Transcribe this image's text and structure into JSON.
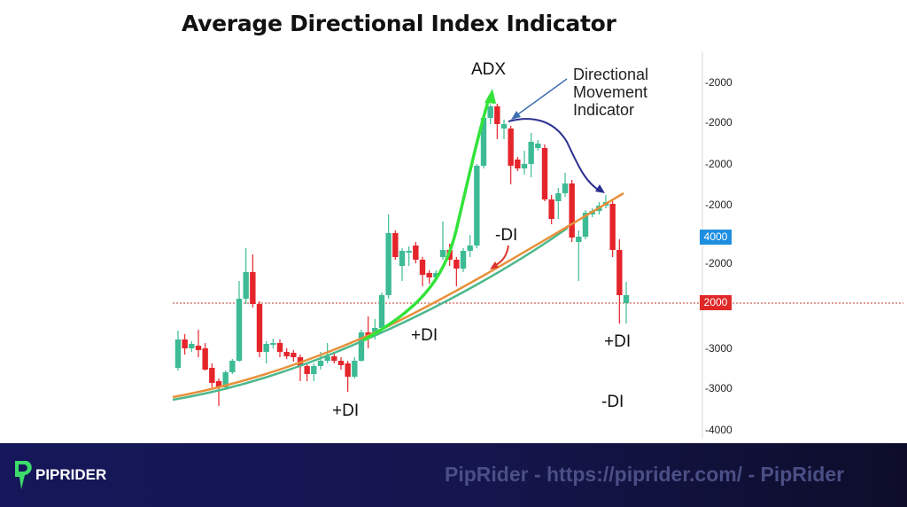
{
  "title": "Average Directional Index Indicator",
  "footer": {
    "logo_text": "PIPRIDER",
    "watermark": "PipRider - https://piprider.com/ - PipRider"
  },
  "chart_data": {
    "type": "candlestick",
    "title": "Average Directional Index Indicator",
    "y_tick_labels": [
      "-2000",
      "-2000",
      "-2000",
      "-2000",
      "-2000",
      "-3000",
      "-3000",
      "-4000"
    ],
    "price_badges": [
      {
        "label": "4000",
        "color": "#1e8fe0"
      },
      {
        "label": "2000",
        "color": "#e02828"
      }
    ],
    "horizontal_reference": {
      "style": "dotted",
      "color": "#c0392b",
      "badge": "2000"
    },
    "colors": {
      "up": "#3dbb94",
      "down": "#e4252b",
      "adx": "#33e33a",
      "plus_di": "#4cb88c",
      "minus_di": "#e8903a",
      "dmi_arrow": "#2b2f8f"
    },
    "annotations": [
      {
        "text": "ADX"
      },
      {
        "text": "Directional Movement Indicator"
      },
      {
        "text": "-DI"
      },
      {
        "text": "+DI"
      },
      {
        "text": "+DI"
      },
      {
        "text": "+DI"
      },
      {
        "text": "-DI"
      }
    ],
    "ohlc_columns": [
      "open",
      "high",
      "low",
      "close"
    ],
    "candles": [
      [
        85,
        127,
        82,
        117
      ],
      [
        117,
        123,
        100,
        107
      ],
      [
        107,
        115,
        103,
        112
      ],
      [
        110,
        128,
        97,
        105
      ],
      [
        107,
        113,
        82,
        83
      ],
      [
        85,
        90,
        63,
        68
      ],
      [
        70,
        73,
        42,
        63
      ],
      [
        63,
        82,
        60,
        80
      ],
      [
        80,
        95,
        78,
        93
      ],
      [
        93,
        183,
        92,
        163
      ],
      [
        163,
        220,
        157,
        193
      ],
      [
        193,
        213,
        153,
        157
      ],
      [
        157,
        160,
        97,
        103
      ],
      [
        103,
        115,
        90,
        112
      ],
      [
        112,
        118,
        107,
        113
      ],
      [
        113,
        117,
        97,
        103
      ],
      [
        103,
        107,
        95,
        98
      ],
      [
        102,
        105,
        92,
        97
      ],
      [
        97,
        100,
        70,
        87
      ],
      [
        87,
        90,
        70,
        78
      ],
      [
        78,
        90,
        70,
        87
      ],
      [
        87,
        103,
        83,
        93
      ],
      [
        93,
        113,
        90,
        98
      ],
      [
        98,
        103,
        90,
        93
      ],
      [
        93,
        97,
        83,
        88
      ],
      [
        90,
        93,
        58,
        75
      ],
      [
        75,
        97,
        73,
        93
      ],
      [
        93,
        128,
        92,
        125
      ],
      [
        125,
        143,
        107,
        120
      ],
      [
        123,
        140,
        117,
        130
      ],
      [
        130,
        170,
        127,
        167
      ],
      [
        167,
        258,
        163,
        237
      ],
      [
        237,
        240,
        207,
        210
      ],
      [
        200,
        220,
        183,
        217
      ],
      [
        215,
        222,
        200,
        217
      ],
      [
        223,
        227,
        203,
        207
      ],
      [
        207,
        210,
        177,
        190
      ],
      [
        192,
        195,
        180,
        187
      ],
      [
        187,
        195,
        185,
        192
      ],
      [
        210,
        250,
        207,
        218
      ],
      [
        218,
        225,
        200,
        207
      ],
      [
        207,
        210,
        177,
        197
      ],
      [
        197,
        220,
        193,
        217
      ],
      [
        217,
        235,
        210,
        223
      ],
      [
        223,
        315,
        220,
        313
      ],
      [
        313,
        368,
        310,
        367
      ],
      [
        367,
        382,
        360,
        380
      ],
      [
        380,
        383,
        343,
        360
      ],
      [
        355,
        365,
        343,
        360
      ],
      [
        355,
        358,
        292,
        313
      ],
      [
        320,
        323,
        307,
        310
      ],
      [
        310,
        330,
        303,
        315
      ],
      [
        315,
        350,
        300,
        340
      ],
      [
        333,
        342,
        330,
        338
      ],
      [
        333,
        337,
        273,
        275
      ],
      [
        275,
        280,
        247,
        253
      ],
      [
        273,
        288,
        253,
        282
      ],
      [
        282,
        305,
        278,
        293
      ],
      [
        293,
        297,
        227,
        232
      ],
      [
        227,
        240,
        183,
        233
      ],
      [
        233,
        263,
        230,
        260
      ],
      [
        258,
        265,
        255,
        262
      ],
      [
        262,
        272,
        258,
        268
      ],
      [
        268,
        280,
        265,
        272
      ],
      [
        270,
        273,
        210,
        218
      ],
      [
        218,
        230,
        135,
        167
      ],
      [
        158,
        182,
        135,
        167
      ]
    ]
  }
}
